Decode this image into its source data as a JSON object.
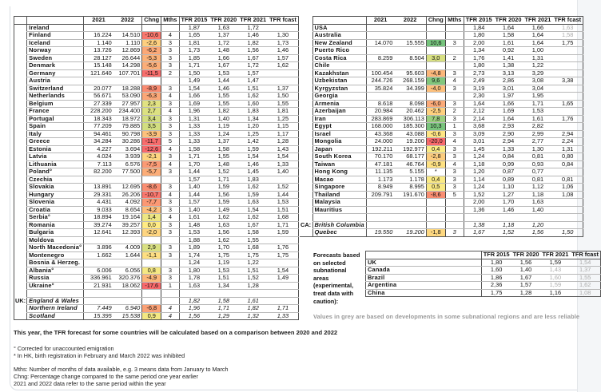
{
  "headers": {
    "c2021": "2021",
    "c2022": "2022",
    "chng": "Chng",
    "mths": "Mths",
    "tfr2015": "TFR 2015",
    "tfr2020": "TFR 2020",
    "tfr2021": "TFR 2021",
    "fcast": "TFR fcast"
  },
  "left_rows": [
    {
      "name": "Ireland",
      "v2021": "",
      "v2022": "",
      "chng": "",
      "mths": "",
      "tfr": [
        "1,87",
        "1,63",
        "1,72",
        ""
      ]
    },
    {
      "name": "Finland",
      "v2021": "16.224",
      "v2022": "14.510",
      "chng": "-10,6",
      "mths": "4",
      "tfr": [
        "1,65",
        "1,37",
        "1,46",
        "1,30"
      ]
    },
    {
      "name": "Iceland",
      "v2021": "1.140",
      "v2022": "1.110",
      "chng": "-2,6",
      "mths": "3",
      "tfr": [
        "1,81",
        "1,72",
        "1,82",
        "1,73"
      ]
    },
    {
      "name": "Norway",
      "v2021": "13.726",
      "v2022": "12.869",
      "chng": "-6,2",
      "mths": "3",
      "tfr": [
        "1,73",
        "1,48",
        "1,56",
        "1,46"
      ]
    },
    {
      "name": "Sweden",
      "v2021": "28.127",
      "v2022": "26.644",
      "chng": "-5,3",
      "mths": "3",
      "tfr": [
        "1,85",
        "1,66",
        "1,67",
        "1,57"
      ]
    },
    {
      "name": "Denmark",
      "v2021": "15.148",
      "v2022": "14.298",
      "chng": "-5,6",
      "mths": "3",
      "tfr": [
        "1,71",
        "1,67",
        "1,72",
        "1,62"
      ]
    },
    {
      "name": "Germany",
      "v2021": "121.640",
      "v2022": "107.701",
      "chng": "-11,5",
      "mths": "2",
      "tfr": [
        "1,50",
        "1,53",
        "1,57",
        ""
      ]
    },
    {
      "name": "Austria",
      "v2021": "",
      "v2022": "",
      "chng": "",
      "mths": "",
      "tfr": [
        "1,49",
        "1,44",
        "1,47",
        ""
      ]
    },
    {
      "name": "Switzerland",
      "v2021": "20.077",
      "v2022": "18.288",
      "chng": "-8,9",
      "mths": "3",
      "tfr": [
        "1,54",
        "1,46",
        "1,51",
        "1,37"
      ]
    },
    {
      "name": "Netherlands",
      "v2021": "56.671",
      "v2022": "53.090",
      "chng": "-6,3",
      "mths": "4",
      "tfr": [
        "1,66",
        "1,55",
        "1,62",
        "1,50"
      ]
    },
    {
      "name": "Belgium",
      "v2021": "27.339",
      "v2022": "27.957",
      "chng": "2,3",
      "mths": "3",
      "tfr": [
        "1,69",
        "1,55",
        "1,60",
        "1,55"
      ]
    },
    {
      "name": "France",
      "v2021": "228.200",
      "v2022": "234.400",
      "chng": "2,7",
      "mths": "4",
      "tfr": [
        "1,96",
        "1,82",
        "1,83",
        "1,81"
      ]
    },
    {
      "name": "Portugal",
      "v2021": "18.343",
      "v2022": "18.972",
      "chng": "3,4",
      "mths": "3",
      "tfr": [
        "1,31",
        "1,40",
        "1,34",
        "1,25"
      ]
    },
    {
      "name": "Spain",
      "v2021": "77.209",
      "v2022": "79.885",
      "chng": "3,5",
      "mths": "3",
      "tfr": [
        "1,33",
        "1,19",
        "1,20",
        "1,15"
      ]
    },
    {
      "name": "Italy",
      "v2021": "94.461",
      "v2022": "90.798",
      "chng": "-3,9",
      "mths": "3",
      "tfr": [
        "1,33",
        "1,24",
        "1,25",
        "1,17"
      ]
    },
    {
      "name": "Greece",
      "v2021": "34.284",
      "v2022": "30.286",
      "chng": "-11,7",
      "mths": "5",
      "tfr": [
        "1,33",
        "1,37",
        "1,42",
        "1,28"
      ]
    },
    {
      "name": "Estonia",
      "v2021": "4.227",
      "v2022": "3.694",
      "chng": "-12,6",
      "mths": "4",
      "tfr": [
        "1,58",
        "1,58",
        "1,59",
        "1,43"
      ]
    },
    {
      "name": "Latvia",
      "v2021": "4.024",
      "v2022": "3.939",
      "chng": "-2,1",
      "mths": "3",
      "tfr": [
        "1,71",
        "1,55",
        "1,54",
        "1,54"
      ]
    },
    {
      "name": "Lithuania",
      "v2021": "7.113",
      "v2022": "6.576",
      "chng": "-7,5",
      "mths": "4",
      "tfr": [
        "1,70",
        "1,48",
        "1,46",
        "1,33"
      ]
    },
    {
      "name": "Poland°",
      "v2021": "82.200",
      "v2022": "77.500",
      "chng": "-5,7",
      "mths": "3",
      "tfr": [
        "1,44",
        "1,52",
        "1,45",
        "1,40"
      ]
    },
    {
      "name": "Czechia",
      "v2021": "",
      "v2022": "",
      "chng": "",
      "mths": "",
      "tfr": [
        "1,57",
        "1,71",
        "1,83",
        ""
      ]
    },
    {
      "name": "Slovakia",
      "v2021": "13.891",
      "v2022": "12.695",
      "chng": "-8,6",
      "mths": "3",
      "tfr": [
        "1,40",
        "1,59",
        "1,62",
        "1,52"
      ]
    },
    {
      "name": "Hungary",
      "v2021": "29.331",
      "v2022": "26.206",
      "chng": "-10,7",
      "mths": "4",
      "tfr": [
        "1,44",
        "1,56",
        "1,59",
        "1,44"
      ]
    },
    {
      "name": "Slovenia",
      "v2021": "4.431",
      "v2022": "4.092",
      "chng": "-7,7",
      "mths": "3",
      "tfr": [
        "1,57",
        "1,59",
        "1,63",
        "1,53"
      ]
    },
    {
      "name": "Croatia",
      "v2021": "9.033",
      "v2022": "8.654",
      "chng": "-4,2",
      "mths": "3",
      "tfr": [
        "1,40",
        "1,49",
        "1,54",
        "1,51"
      ]
    },
    {
      "name": "Serbia°",
      "v2021": "18.894",
      "v2022": "19.164",
      "chng": "1,4",
      "mths": "4",
      "tfr": [
        "1,61",
        "1,62",
        "1,62",
        "1,68"
      ]
    },
    {
      "name": "Romania",
      "v2021": "39.274",
      "v2022": "39.257",
      "chng": "0,0",
      "mths": "3",
      "tfr": [
        "1,48",
        "1,63",
        "1,67",
        "1,71"
      ]
    },
    {
      "name": "Bulgaria",
      "v2021": "12.641",
      "v2022": "12.393",
      "chng": "-2,0",
      "mths": "3",
      "tfr": [
        "1,53",
        "1,56",
        "1,58",
        "1,59"
      ]
    },
    {
      "name": "Moldova",
      "v2021": "",
      "v2022": "",
      "chng": "",
      "mths": "",
      "tfr": [
        "1,88",
        "1,62",
        "1,55",
        ""
      ]
    },
    {
      "name": "North Macedonia°",
      "v2021": "3.896",
      "v2022": "4.009",
      "chng": "2,9",
      "mths": "3",
      "tfr": [
        "1,89",
        "1,70",
        "1,68",
        "1,76"
      ]
    },
    {
      "name": "Montenegro",
      "v2021": "1.662",
      "v2022": "1.644",
      "chng": "-1,1",
      "mths": "3",
      "tfr": [
        "1,74",
        "1,75",
        "1,75",
        "1,75"
      ]
    },
    {
      "name": "Bosnia & Herzeg.",
      "v2021": "",
      "v2022": "",
      "chng": "",
      "mths": "",
      "tfr": [
        "1,24",
        "1,19",
        "1,22",
        ""
      ]
    },
    {
      "name": "Albania°",
      "v2021": "6.006",
      "v2022": "6.056",
      "chng": "0,8",
      "mths": "3",
      "tfr": [
        "1,80",
        "1,53",
        "1,51",
        "1,54"
      ]
    },
    {
      "name": "Russia",
      "v2021": "336.961",
      "v2022": "320.376",
      "chng": "-4,9",
      "mths": "3",
      "tfr": [
        "1,78",
        "1,51",
        "1,52",
        "1,49"
      ]
    },
    {
      "name": "Ukraine°",
      "v2021": "21.931",
      "v2022": "18.062",
      "chng": "-17,6",
      "mths": "1",
      "tfr": [
        "1,63",
        "1,34",
        "1,28",
        ""
      ]
    },
    {
      "name": "",
      "v2021": "",
      "v2022": "",
      "chng": "",
      "mths": "",
      "tfr": [
        "",
        "",
        "",
        ""
      ]
    },
    {
      "group": "UK:",
      "italic": true,
      "name": "England & Wales",
      "v2021": "",
      "v2022": "",
      "chng": "",
      "mths": "",
      "tfr": [
        "1,82",
        "1,58",
        "1,61",
        ""
      ]
    },
    {
      "italic": true,
      "name": "Northern Ireland",
      "v2021": "7.449",
      "v2022": "6.940",
      "chng": "-6,8",
      "mths": "4",
      "tfr": [
        "1,96",
        "1,71",
        "1,82",
        "1,71"
      ]
    },
    {
      "italic": true,
      "name": "Scotland",
      "v2021": "15.395",
      "v2022": "15.538",
      "chng": "0,9",
      "mths": "4",
      "tfr": [
        "1,56",
        "1,29",
        "1,32",
        "1,33"
      ]
    }
  ],
  "right_rows": [
    {
      "name": "USA",
      "v2021": "",
      "v2022": "",
      "chng": "",
      "mths": "",
      "tfr": [
        "1,84",
        "1,64",
        "1,66",
        "1,63"
      ],
      "grey": [
        3
      ]
    },
    {
      "name": "Australia",
      "v2021": "",
      "v2022": "",
      "chng": "",
      "mths": "",
      "tfr": [
        "1,80",
        "1,58",
        "1,64",
        "1,58"
      ],
      "grey": [
        3
      ]
    },
    {
      "name": "New Zealand",
      "v2021": "14.070",
      "v2022": "15.555",
      "chng": "10,6",
      "mths": "3",
      "tfr": [
        "2,00",
        "1,61",
        "1,64",
        "1,75"
      ]
    },
    {
      "name": "Puerto Rico",
      "v2021": "",
      "v2022": "",
      "chng": "",
      "mths": "",
      "tfr": [
        "1,34",
        "0,92",
        "1,00",
        ""
      ]
    },
    {
      "name": "Costa Rica",
      "v2021": "8.259",
      "v2022": "8.504",
      "chng": "3,0",
      "mths": "2",
      "tfr": [
        "1,76",
        "1,41",
        "1,31",
        ""
      ]
    },
    {
      "name": "Chile",
      "v2021": "",
      "v2022": "",
      "chng": "",
      "mths": "",
      "tfr": [
        "1,80",
        "1,38",
        "1,22",
        ""
      ]
    },
    {
      "name": "Kazakhstan",
      "v2021": "100.454",
      "v2022": "95.603",
      "chng": "-4,8",
      "mths": "3",
      "tfr": [
        "2,73",
        "3,13",
        "3,29",
        ""
      ]
    },
    {
      "name": "Uzbekistan",
      "v2021": "244.726",
      "v2022": "268.159",
      "chng": "9,6",
      "mths": "4",
      "tfr": [
        "2,49",
        "2,86",
        "3,08",
        "3,38"
      ]
    },
    {
      "name": "Kyrgyzstan",
      "v2021": "35.824",
      "v2022": "34.399",
      "chng": "-4,0",
      "mths": "3",
      "tfr": [
        "3,19",
        "3,01",
        "3,04",
        ""
      ]
    },
    {
      "name": "Georgia",
      "v2021": "",
      "v2022": "",
      "chng": "",
      "mths": "",
      "tfr": [
        "2,30",
        "1,97",
        "1,95",
        ""
      ]
    },
    {
      "name": "Armenia",
      "v2021": "8.618",
      "v2022": "8.098",
      "chng": "-6,0",
      "mths": "3",
      "tfr": [
        "1,64",
        "1,66",
        "1,71",
        "1,65"
      ]
    },
    {
      "name": "Azerbaijan",
      "v2021": "20.984",
      "v2022": "20.462",
      "chng": "-2,5",
      "mths": "2",
      "tfr": [
        "2,12",
        "1,69",
        "1,53",
        ""
      ]
    },
    {
      "name": "Iran",
      "v2021": "283.869",
      "v2022": "306.113",
      "chng": "7,8",
      "mths": "3",
      "tfr": [
        "2,14",
        "1,64",
        "1,61",
        "1,76"
      ]
    },
    {
      "name": "Egypt",
      "v2021": "168.000",
      "v2022": "185.300",
      "chng": "10,3",
      "mths": "1",
      "tfr": [
        "3,68",
        "2,93",
        "2,82",
        ""
      ]
    },
    {
      "name": "Israel",
      "v2021": "43.368",
      "v2022": "43.088",
      "chng": "-0,6",
      "mths": "3",
      "tfr": [
        "3,09",
        "2,90",
        "2,99",
        "2,94"
      ]
    },
    {
      "name": "Mongolia",
      "v2021": "24.000",
      "v2022": "19.200",
      "chng": "-20,0",
      "mths": "4",
      "tfr": [
        "3,01",
        "2,94",
        "2,77",
        "2,24"
      ]
    },
    {
      "name": "Japan",
      "v2021": "192.211",
      "v2022": "192.977",
      "chng": "0,4",
      "mths": "3",
      "tfr": [
        "1,45",
        "1,33",
        "1,30",
        "1,31"
      ]
    },
    {
      "name": "South Korea",
      "v2021": "70.170",
      "v2022": "68.177",
      "chng": "-2,8",
      "mths": "3",
      "tfr": [
        "1,24",
        "0,84",
        "0,81",
        "0,80"
      ]
    },
    {
      "name": "Taiwan",
      "v2021": "47.181",
      "v2022": "46.764",
      "chng": "-0,9",
      "mths": "4",
      "tfr": [
        "1,18",
        "0,99",
        "0,93",
        "0,84"
      ]
    },
    {
      "name": "Hong Kong",
      "v2021": "11.135",
      "v2022": "5.155",
      "chng": "*",
      "mths": "3",
      "tfr": [
        "1,20",
        "0,87",
        "0,77",
        ""
      ]
    },
    {
      "name": "Macao",
      "v2021": "1.173",
      "v2022": "1.178",
      "chng": "0,4",
      "mths": "3",
      "tfr": [
        "1,14",
        "0,89",
        "0,81",
        "0,81"
      ]
    },
    {
      "name": "Singapore",
      "v2021": "8.949",
      "v2022": "8.995",
      "chng": "0,5",
      "mths": "3",
      "tfr": [
        "1,24",
        "1,10",
        "1,12",
        "1,06"
      ]
    },
    {
      "name": "Thailand",
      "v2021": "209.791",
      "v2022": "191.670",
      "chng": "-8,6",
      "mths": "5",
      "tfr": [
        "1,52",
        "1,27",
        "1,18",
        "1,08"
      ]
    },
    {
      "name": "Malaysia",
      "v2021": "",
      "v2022": "",
      "chng": "",
      "mths": "",
      "tfr": [
        "2,00",
        "1,70",
        "1,63",
        ""
      ]
    },
    {
      "name": "Mauritius",
      "v2021": "",
      "v2022": "",
      "chng": "",
      "mths": "",
      "tfr": [
        "1,36",
        "1,46",
        "1,40",
        ""
      ]
    },
    {
      "name": "",
      "v2021": "",
      "v2022": "",
      "chng": "",
      "mths": "",
      "tfr": [
        "",
        "",
        "",
        ""
      ]
    },
    {
      "group": "CA:",
      "italic": true,
      "name": "British Columbia",
      "v2021": "",
      "v2022": "",
      "chng": "",
      "mths": "",
      "tfr": [
        "1,38",
        "1,18",
        "1,20",
        ""
      ]
    },
    {
      "italic": true,
      "name": "Quebec",
      "v2021": "19.550",
      "v2022": "19.200",
      "chng": "-1,8",
      "mths": "3",
      "tfr": [
        "1,67",
        "1,52",
        "1,56",
        "1,50"
      ]
    }
  ],
  "forecast": {
    "label": "Forecasts based on selected subnational areas (experimental, treat data with caution):",
    "rows": [
      {
        "name": "UK",
        "tfr": [
          "1,80",
          "1,56",
          "1,59",
          "1,54"
        ],
        "grey": [
          3
        ]
      },
      {
        "name": "Canada",
        "tfr": [
          "1,60",
          "1,40",
          "1,43",
          "1,37"
        ],
        "grey": [
          2,
          3
        ]
      },
      {
        "name": "Brazil",
        "tfr": [
          "1,86",
          "1,67",
          "1,60",
          "1,55"
        ],
        "grey": [
          2,
          3
        ]
      },
      {
        "name": "Argentina",
        "tfr": [
          "2,36",
          "1,57",
          "1,59",
          "1,62"
        ],
        "grey": [
          2,
          3
        ]
      },
      {
        "name": "China",
        "tfr": [
          "1,75",
          "1,28",
          "1,16",
          "1,08"
        ],
        "grey": [
          3
        ]
      }
    ],
    "grey_note": "Values in grey are based on developments in some subnational regions and are less reliable"
  },
  "notes": {
    "headline": "This year, the TFR forecast for some countries will be calculated based on a comparison between 2020 and 2022",
    "footnote1": "° Corrected for unaccounted emigration",
    "footnote2": "* In HK, birth registration in February and March 2022 was inhibited",
    "mths": "Mths: Number of months of data available, e.g. 3 means data from January to March",
    "chng": "Chng: Percentage change compared to the same period one year earlier",
    "period": "2021 and 2022 data refer to the same period within the year"
  },
  "colors": {
    "neg": "#f8696b",
    "mid": "#ffeb84",
    "pos": "#63be7b",
    "grey_text": "#aaaaaa"
  }
}
